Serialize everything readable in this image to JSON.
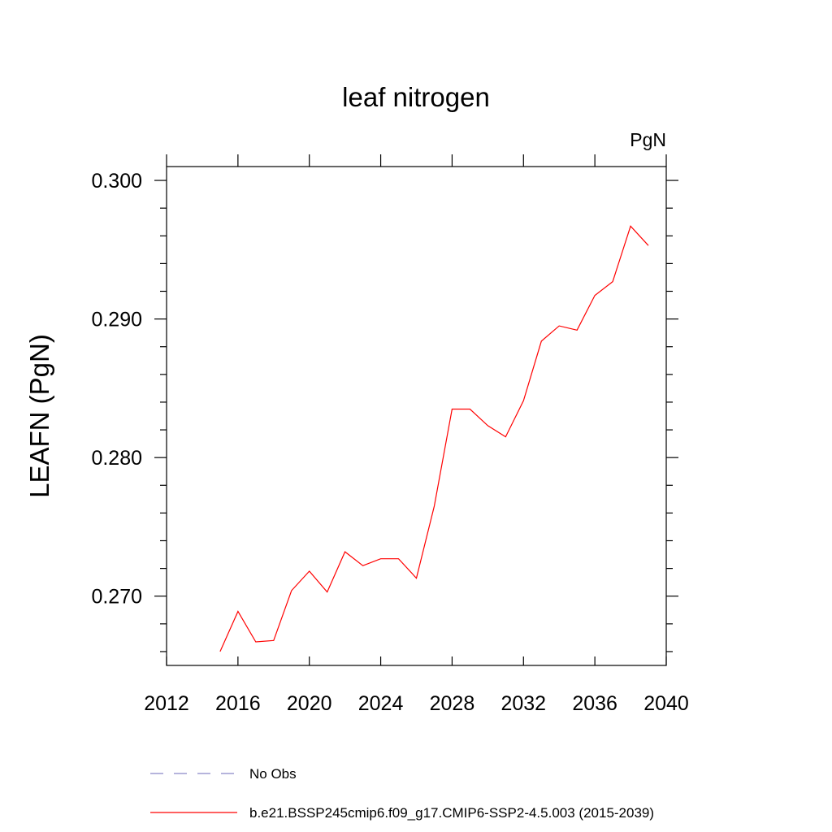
{
  "chart_data": {
    "type": "line",
    "title": "leaf nitrogen",
    "units_label": "PgN",
    "ylabel": "LEAFN  (PgN)",
    "xlim": [
      2012,
      2040
    ],
    "ylim": [
      0.265,
      0.301
    ],
    "x_ticks": [
      "2012",
      "2016",
      "2020",
      "2024",
      "2028",
      "2032",
      "2036",
      "2040"
    ],
    "y_ticks": [
      "0.270",
      "0.280",
      "0.290",
      "0.300"
    ],
    "grid": false,
    "legend_position": "bottom",
    "series": [
      {
        "name": "b.e21.BSSP245cmip6.f09_g17.CMIP6-SSP2-4.5.003 (2015-2039)",
        "color": "#ff0000",
        "x": [
          2015,
          2016,
          2017,
          2018,
          2019,
          2020,
          2021,
          2022,
          2023,
          2024,
          2025,
          2026,
          2027,
          2028,
          2029,
          2030,
          2031,
          2032,
          2033,
          2034,
          2035,
          2036,
          2037,
          2038,
          2039
        ],
        "values": [
          0.266,
          0.2689,
          0.2667,
          0.2668,
          0.2704,
          0.2718,
          0.2703,
          0.2732,
          0.2722,
          0.2727,
          0.2727,
          0.2713,
          0.2765,
          0.2835,
          0.2835,
          0.2823,
          0.2815,
          0.2841,
          0.2884,
          0.2895,
          0.2892,
          0.2917,
          0.2927,
          0.2967,
          0.2953
        ]
      }
    ],
    "legend": [
      {
        "label": "No Obs",
        "color": "#8a86c8",
        "style": "dashed"
      },
      {
        "label": "b.e21.BSSP245cmip6.f09_g17.CMIP6-SSP2-4.5.003 (2015-2039)",
        "color": "#ff0000",
        "style": "solid"
      }
    ]
  }
}
